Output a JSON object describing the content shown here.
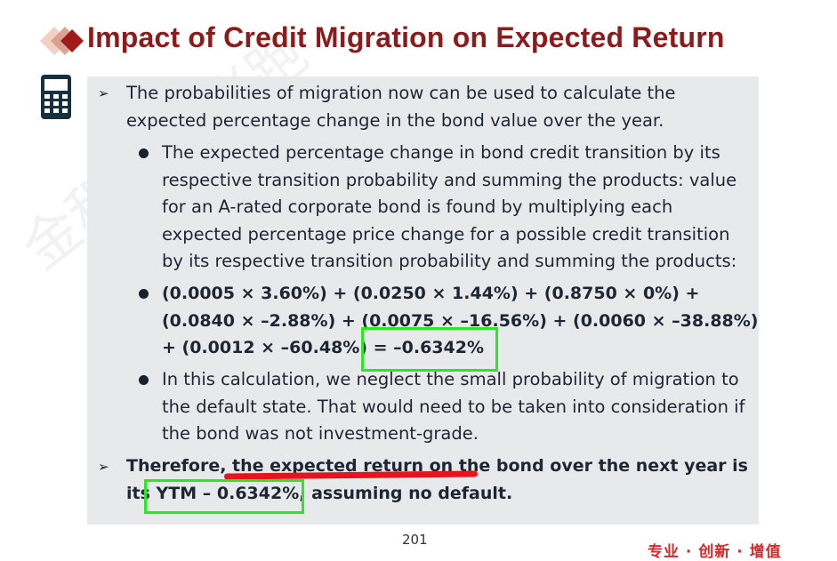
{
  "slide": {
    "title": "Impact of Credit Migration on Expected Return",
    "page_number": "201",
    "footer_tag": "专业 · 创新 · 增值",
    "watermark": "金程教育张跑"
  },
  "content": {
    "l1": "The probabilities of migration now can be used to calculate the",
    "l2": "expected percentage change in the bond value over the year.",
    "l3": "The expected percentage change in bond credit transition by its",
    "l4": "respective transition probability and summing the products: value",
    "l5": "for an A-rated corporate bond is found by multiplying each",
    "l6": "expected percentage price change for a possible credit transition",
    "l7": "by its respective transition probability and summing the products:",
    "l8": "(0.0005 × 3.60%) + (0.0250 × 1.44%) + (0.8750 × 0%) +",
    "l9": "(0.0840 × –2.88%) + (0.0075 × –16.56%) + (0.0060 × –38.88%)",
    "l10": "+ (0.0012 × –60.48%) = –0.6342%",
    "l11": "In this calculation, we neglect the small probability of migration to",
    "l12": "the default state. That would need to be taken into consideration if",
    "l13": "the bond was not investment-grade.",
    "l14": "Therefore, the expected return on the bond over the next year is",
    "l15": "its YTM – 0.6342%, assuming no default."
  },
  "colors": {
    "title": "#8c1c1c",
    "panel": "#e8e9eb",
    "highlight_box": "#2ee626",
    "red_underline": "#e6141e"
  },
  "icons": [
    "diamond-logo-icon",
    "calculator-icon",
    "arrow-bullet-icon",
    "dot-bullet-icon"
  ]
}
